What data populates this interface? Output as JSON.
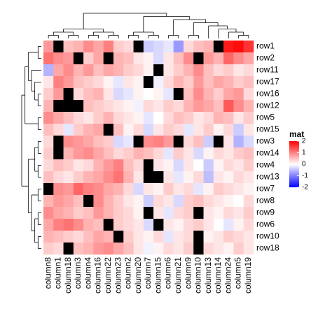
{
  "chart_data": {
    "type": "heatmap",
    "rows": [
      "row1",
      "row2",
      "row11",
      "row17",
      "row16",
      "row12",
      "row5",
      "row15",
      "row3",
      "row14",
      "row4",
      "row13",
      "row7",
      "row8",
      "row9",
      "row6",
      "row10",
      "row18"
    ],
    "columns": [
      "column8",
      "column1",
      "column18",
      "column3",
      "column4",
      "column16",
      "column22",
      "column23",
      "column2",
      "column20",
      "column7",
      "column15",
      "column6",
      "column21",
      "column9",
      "column10",
      "column13",
      "column14",
      "column24",
      "column5",
      "column19"
    ],
    "values": [
      [
        0.8,
        null,
        0.5,
        0.6,
        0.9,
        0.7,
        1.0,
        0.4,
        0.3,
        null,
        -0.4,
        -0.3,
        -0.2,
        -0.8,
        0.3,
        0.5,
        0.6,
        null,
        1.8,
        1.9,
        1.6
      ],
      [
        1.1,
        0.9,
        0.8,
        null,
        0.4,
        0.7,
        null,
        0.6,
        0.5,
        0.2,
        0.1,
        -0.3,
        0.2,
        0.5,
        0.9,
        null,
        0.8,
        0.6,
        1.2,
        0.9,
        0.7
      ],
      [
        -0.6,
        0.7,
        0.9,
        0.6,
        0.8,
        0.5,
        0.7,
        0.6,
        0.4,
        0.3,
        0.1,
        null,
        0.2,
        0.4,
        0.6,
        0.9,
        0.5,
        0.3,
        0.4,
        0.2,
        0.3
      ],
      [
        0.2,
        1.0,
        0.8,
        0.5,
        0.4,
        0.3,
        0.1,
        -0.2,
        0.2,
        0.1,
        null,
        -0.1,
        0.3,
        0.6,
        0.4,
        0.8,
        0.5,
        0.7,
        0.6,
        0.4,
        0.5
      ],
      [
        0.4,
        0.8,
        null,
        0.3,
        0.5,
        0.6,
        0.2,
        -0.3,
        -0.2,
        0.1,
        0.0,
        0.1,
        -0.2,
        null,
        0.5,
        0.9,
        0.6,
        0.4,
        0.7,
        0.8,
        0.3
      ],
      [
        0.6,
        null,
        null,
        null,
        0.5,
        0.4,
        0.3,
        0.2,
        0.1,
        -0.1,
        0.3,
        0.2,
        0.4,
        0.3,
        0.6,
        0.8,
        0.7,
        0.5,
        1.3,
        0.9,
        0.6
      ],
      [
        0.9,
        0.7,
        0.5,
        0.3,
        0.2,
        0.4,
        0.6,
        0.3,
        0.2,
        0.1,
        -0.2,
        0.0,
        0.3,
        0.5,
        0.4,
        0.2,
        0.3,
        0.6,
        0.5,
        0.2,
        0.4
      ],
      [
        0.5,
        0.3,
        -0.2,
        0.4,
        0.6,
        0.7,
        null,
        0.5,
        0.1,
        0.3,
        -0.3,
        0.2,
        0.4,
        0.3,
        -0.2,
        0.2,
        0.4,
        0.1,
        0.3,
        -0.4,
        0.2
      ],
      [
        0.3,
        null,
        0.9,
        0.8,
        0.7,
        0.5,
        0.4,
        -0.3,
        -0.2,
        null,
        0.9,
        1.0,
        0.8,
        null,
        0.3,
        0.5,
        -0.4,
        null,
        0.2,
        -0.6,
        -0.3
      ],
      [
        0.4,
        null,
        0.6,
        0.8,
        0.9,
        0.7,
        0.5,
        0.3,
        0.4,
        0.6,
        0.5,
        0.3,
        -0.2,
        0.4,
        0.2,
        -0.3,
        0.1,
        0.3,
        0.2,
        0.4,
        0.5
      ],
      [
        0.3,
        0.5,
        0.4,
        0.2,
        0.3,
        0.6,
        0.8,
        1.0,
        0.5,
        0.3,
        null,
        0.2,
        0.1,
        -0.3,
        0.2,
        0.0,
        -0.4,
        0.1,
        0.3,
        0.2,
        0.4
      ],
      [
        0.5,
        0.3,
        0.2,
        0.4,
        0.6,
        0.7,
        0.9,
        1.1,
        0.6,
        0.2,
        null,
        null,
        0.2,
        -0.2,
        0.1,
        0.3,
        -0.5,
        0.2,
        0.1,
        0.3,
        0.2
      ],
      [
        null,
        0.9,
        0.8,
        1.2,
        1.0,
        0.9,
        0.7,
        0.6,
        0.3,
        -0.3,
        0.2,
        0.1,
        0.4,
        0.2,
        0.3,
        -0.2,
        0.1,
        0.4,
        0.3,
        0.2,
        0.1
      ],
      [
        0.6,
        0.8,
        0.7,
        0.5,
        null,
        0.9,
        0.6,
        0.4,
        0.2,
        0.1,
        -0.4,
        0.3,
        0.2,
        -0.3,
        0.4,
        0.5,
        0.3,
        0.2,
        0.1,
        0.0,
        0.3
      ],
      [
        0.9,
        0.7,
        0.6,
        0.4,
        0.5,
        0.8,
        0.6,
        0.4,
        0.3,
        0.1,
        null,
        0.2,
        -0.2,
        0.3,
        0.4,
        null,
        0.2,
        0.1,
        0.3,
        0.2,
        0.4
      ],
      [
        0.7,
        1.0,
        1.1,
        0.9,
        0.6,
        0.5,
        null,
        0.4,
        0.3,
        0.2,
        -0.3,
        null,
        0.2,
        0.1,
        0.3,
        0.4,
        0.2,
        0.0,
        -0.2,
        0.1,
        0.3
      ],
      [
        0.6,
        0.5,
        0.4,
        0.3,
        0.5,
        0.7,
        0.6,
        null,
        0.4,
        0.2,
        0.1,
        0.3,
        -0.2,
        0.2,
        0.3,
        null,
        0.1,
        0.2,
        0.4,
        0.3,
        0.2
      ],
      [
        0.4,
        0.3,
        null,
        0.5,
        0.6,
        0.8,
        0.9,
        0.7,
        0.5,
        0.2,
        -0.1,
        0.1,
        0.3,
        0.2,
        0.4,
        null,
        0.3,
        0.2,
        0.1,
        0.4,
        0.2
      ]
    ],
    "colorscale": [
      {
        "value": -2,
        "color": "#0000FF"
      },
      {
        "value": 0,
        "color": "#FFFFFF"
      },
      {
        "value": 2,
        "color": "#FF0000"
      }
    ],
    "na_color": "#000000",
    "legend_title": "mat",
    "colorbar_ticks": [
      2,
      1,
      0,
      -1,
      -2
    ]
  }
}
